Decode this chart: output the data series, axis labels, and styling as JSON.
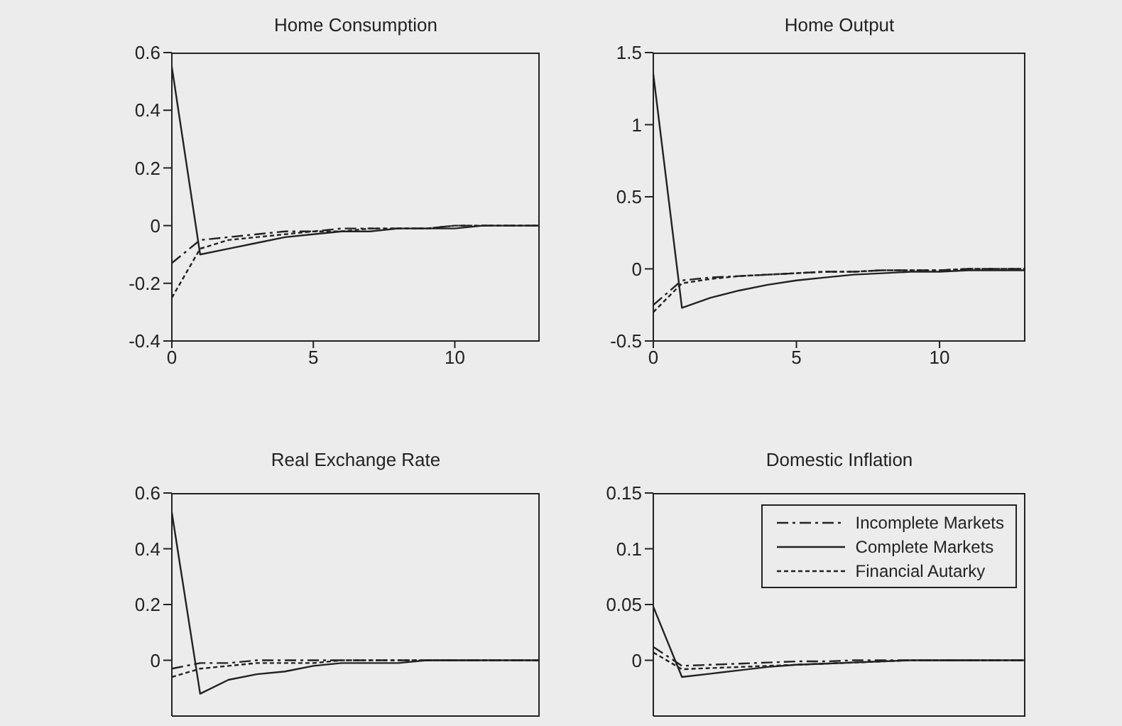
{
  "chart_data": [
    {
      "type": "line",
      "title": "Home Consumption",
      "x": [
        0,
        1,
        2,
        3,
        4,
        5,
        6,
        7,
        8,
        9,
        10,
        11,
        12,
        13
      ],
      "xlim": [
        0,
        13
      ],
      "xticks": [
        0,
        5,
        10
      ],
      "ylim": [
        -0.4,
        0.6
      ],
      "yticks": [
        -0.4,
        -0.2,
        0,
        0.2,
        0.4,
        0.6
      ],
      "legend": false,
      "series": [
        {
          "color": "#222222",
          "line_style": "dashed",
          "values": [
            -0.13,
            -0.05,
            -0.04,
            -0.03,
            -0.02,
            -0.02,
            -0.01,
            -0.01,
            -0.01,
            -0.01,
            0,
            0,
            0,
            0
          ]
        },
        {
          "color": "#222222",
          "line_style": "solid",
          "values": [
            0.55,
            -0.1,
            -0.08,
            -0.06,
            -0.04,
            -0.03,
            -0.02,
            -0.02,
            -0.01,
            -0.01,
            -0.01,
            0,
            0,
            0
          ]
        },
        {
          "color": "#222222",
          "line_style": "dotted",
          "values": [
            -0.25,
            -0.08,
            -0.05,
            -0.04,
            -0.03,
            -0.02,
            -0.02,
            -0.01,
            -0.01,
            -0.01,
            0,
            0,
            0,
            0
          ]
        }
      ]
    },
    {
      "type": "line",
      "title": "Home Output",
      "x": [
        0,
        1,
        2,
        3,
        4,
        5,
        6,
        7,
        8,
        9,
        10,
        11,
        12,
        13
      ],
      "xlim": [
        0,
        13
      ],
      "xticks": [
        0,
        5,
        10
      ],
      "ylim": [
        -0.5,
        1.5
      ],
      "yticks": [
        -0.5,
        0,
        0.5,
        1,
        1.5
      ],
      "legend": false,
      "series": [
        {
          "color": "#222222",
          "line_style": "dashed",
          "values": [
            -0.25,
            -0.08,
            -0.06,
            -0.05,
            -0.04,
            -0.03,
            -0.02,
            -0.02,
            -0.01,
            -0.01,
            -0.01,
            0,
            0,
            0
          ]
        },
        {
          "color": "#222222",
          "line_style": "solid",
          "values": [
            1.35,
            -0.27,
            -0.2,
            -0.15,
            -0.11,
            -0.08,
            -0.06,
            -0.04,
            -0.03,
            -0.02,
            -0.02,
            -0.01,
            -0.01,
            -0.01
          ]
        },
        {
          "color": "#222222",
          "line_style": "dotted",
          "values": [
            -0.3,
            -0.1,
            -0.07,
            -0.05,
            -0.04,
            -0.03,
            -0.02,
            -0.02,
            -0.01,
            -0.01,
            -0.01,
            0,
            0,
            0
          ]
        }
      ]
    },
    {
      "type": "line",
      "title": "Real Exchange Rate",
      "x": [
        0,
        1,
        2,
        3,
        4,
        5,
        6,
        7,
        8,
        9,
        10,
        11,
        12,
        13
      ],
      "xlim": [
        0,
        13
      ],
      "xticks": [
        0,
        5,
        10
      ],
      "ylim": [
        -0.2,
        0.6
      ],
      "yticks": [
        0,
        0.2,
        0.4,
        0.6
      ],
      "legend": false,
      "tick_labels": "y",
      "series": [
        {
          "color": "#222222",
          "line_style": "dashed",
          "values": [
            -0.03,
            -0.01,
            -0.01,
            0,
            0,
            0,
            0,
            0,
            0,
            0,
            0,
            0,
            0,
            0
          ]
        },
        {
          "color": "#222222",
          "line_style": "solid",
          "values": [
            0.53,
            -0.12,
            -0.07,
            -0.05,
            -0.04,
            -0.02,
            -0.01,
            -0.01,
            -0.01,
            0,
            0,
            0,
            0,
            0
          ]
        },
        {
          "color": "#222222",
          "line_style": "dotted",
          "values": [
            -0.06,
            -0.03,
            -0.02,
            -0.01,
            -0.01,
            -0.01,
            0,
            0,
            0,
            0,
            0,
            0,
            0,
            0
          ]
        }
      ]
    },
    {
      "type": "line",
      "title": "Domestic Inflation",
      "x": [
        0,
        1,
        2,
        3,
        4,
        5,
        6,
        7,
        8,
        9,
        10,
        11,
        12,
        13
      ],
      "xlim": [
        0,
        13
      ],
      "xticks": [
        0,
        5,
        10
      ],
      "ylim": [
        -0.05,
        0.15
      ],
      "yticks": [
        0,
        0.05,
        0.1,
        0.15
      ],
      "legend": "top right",
      "tick_labels": "y",
      "series": [
        {
          "name": "Incomplete Markets",
          "color": "#222222",
          "line_style": "dashed",
          "values": [
            0.012,
            -0.005,
            -0.004,
            -0.003,
            -0.002,
            -0.001,
            -0.001,
            0,
            0,
            0,
            0,
            0,
            0,
            0
          ]
        },
        {
          "name": "Complete Markets",
          "color": "#222222",
          "line_style": "solid",
          "values": [
            0.048,
            -0.015,
            -0.012,
            -0.009,
            -0.006,
            -0.004,
            -0.003,
            -0.002,
            -0.001,
            0,
            0,
            0,
            0,
            0
          ]
        },
        {
          "name": "Financial Autarky",
          "color": "#222222",
          "line_style": "dotted",
          "values": [
            0.007,
            -0.008,
            -0.007,
            -0.006,
            -0.005,
            -0.004,
            -0.003,
            -0.002,
            -0.001,
            0,
            0,
            0,
            0,
            0
          ]
        }
      ]
    }
  ]
}
